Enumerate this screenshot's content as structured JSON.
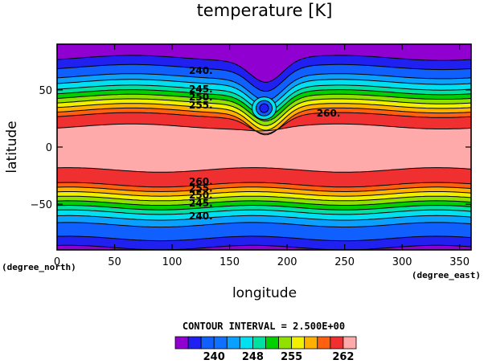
{
  "chart_data": {
    "type": "contour",
    "title": "temperature [K]",
    "xlabel": "longitude",
    "ylabel": "latitude",
    "x_unit": "(degree_east)",
    "y_unit": "(degree_north)",
    "xlim": [
      0,
      360
    ],
    "ylim": [
      -90,
      90
    ],
    "x_ticks": [
      "0",
      "50",
      "100",
      "150",
      "200",
      "250",
      "300",
      "350"
    ],
    "y_ticks": [
      "50",
      "0",
      "−50"
    ],
    "contour_interval_text": "CONTOUR INTERVAL = 2.500E+00",
    "contour_labels": [
      {
        "text": "240.",
        "lon": 125,
        "lat": 67
      },
      {
        "text": "245.",
        "lon": 125,
        "lat": 51
      },
      {
        "text": "250.",
        "lon": 125,
        "lat": 44
      },
      {
        "text": "255.",
        "lon": 125,
        "lat": 37
      },
      {
        "text": "260.",
        "lon": 236,
        "lat": 30
      },
      {
        "text": "260.",
        "lon": 125,
        "lat": -30
      },
      {
        "text": "255.",
        "lon": 125,
        "lat": -36
      },
      {
        "text": "250.",
        "lon": 125,
        "lat": -42
      },
      {
        "text": "245.",
        "lon": 125,
        "lat": -49
      },
      {
        "text": "240.",
        "lon": 125,
        "lat": -60
      }
    ],
    "bands": [
      {
        "north_lat": 90,
        "south_lat": 78,
        "north_min": -90,
        "south_min": -88,
        "color": "#9000d0"
      },
      {
        "north_lat": 78,
        "south_lat": 70,
        "north_min": -88,
        "south_min": -80,
        "color": "#2020f0"
      },
      {
        "north_lat": 70,
        "south_lat": 62,
        "north_min": -80,
        "south_min": -68,
        "color": "#1060ff"
      },
      {
        "north_lat": 62,
        "south_lat": 57,
        "north_min": -68,
        "south_min": -62,
        "color": "#0aa0ff"
      },
      {
        "north_lat": 57,
        "south_lat": 52,
        "north_min": -62,
        "south_min": -57,
        "color": "#00e0f0"
      },
      {
        "north_lat": 52,
        "south_lat": 48,
        "north_min": -57,
        "south_min": -53,
        "color": "#00e0a0"
      },
      {
        "north_lat": 48,
        "south_lat": 44,
        "north_min": -53,
        "south_min": -49,
        "color": "#00d000"
      },
      {
        "north_lat": 44,
        "south_lat": 40,
        "north_min": -49,
        "south_min": -45,
        "color": "#90e000"
      },
      {
        "north_lat": 40,
        "south_lat": 36,
        "north_min": -45,
        "south_min": -41,
        "color": "#f0f000"
      },
      {
        "north_lat": 36,
        "south_lat": 32,
        "north_min": -41,
        "south_min": -37,
        "color": "#ffb000"
      },
      {
        "north_lat": 32,
        "south_lat": 28,
        "north_min": -37,
        "south_min": -33,
        "color": "#ff6010"
      },
      {
        "north_lat": 28,
        "south_lat": 18,
        "north_min": -33,
        "south_min": -20,
        "color": "#f03030"
      },
      {
        "north_lat": 18,
        "south_lat": -20,
        "north_min": 0,
        "south_min": 0,
        "color": "#ffaaaa"
      }
    ],
    "colorbar": {
      "colors": [
        "#9000d0",
        "#2020f0",
        "#1060ff",
        "#1070ff",
        "#0aa0ff",
        "#00e0f0",
        "#00e0a0",
        "#00d000",
        "#90e000",
        "#f0f000",
        "#ffb000",
        "#ff6010",
        "#f03030",
        "#ffaaaa"
      ],
      "tick_labels": [
        {
          "label": "240",
          "index": 2
        },
        {
          "label": "248",
          "index": 5
        },
        {
          "label": "255",
          "index": 8
        },
        {
          "label": "262",
          "index": 12
        }
      ]
    }
  }
}
